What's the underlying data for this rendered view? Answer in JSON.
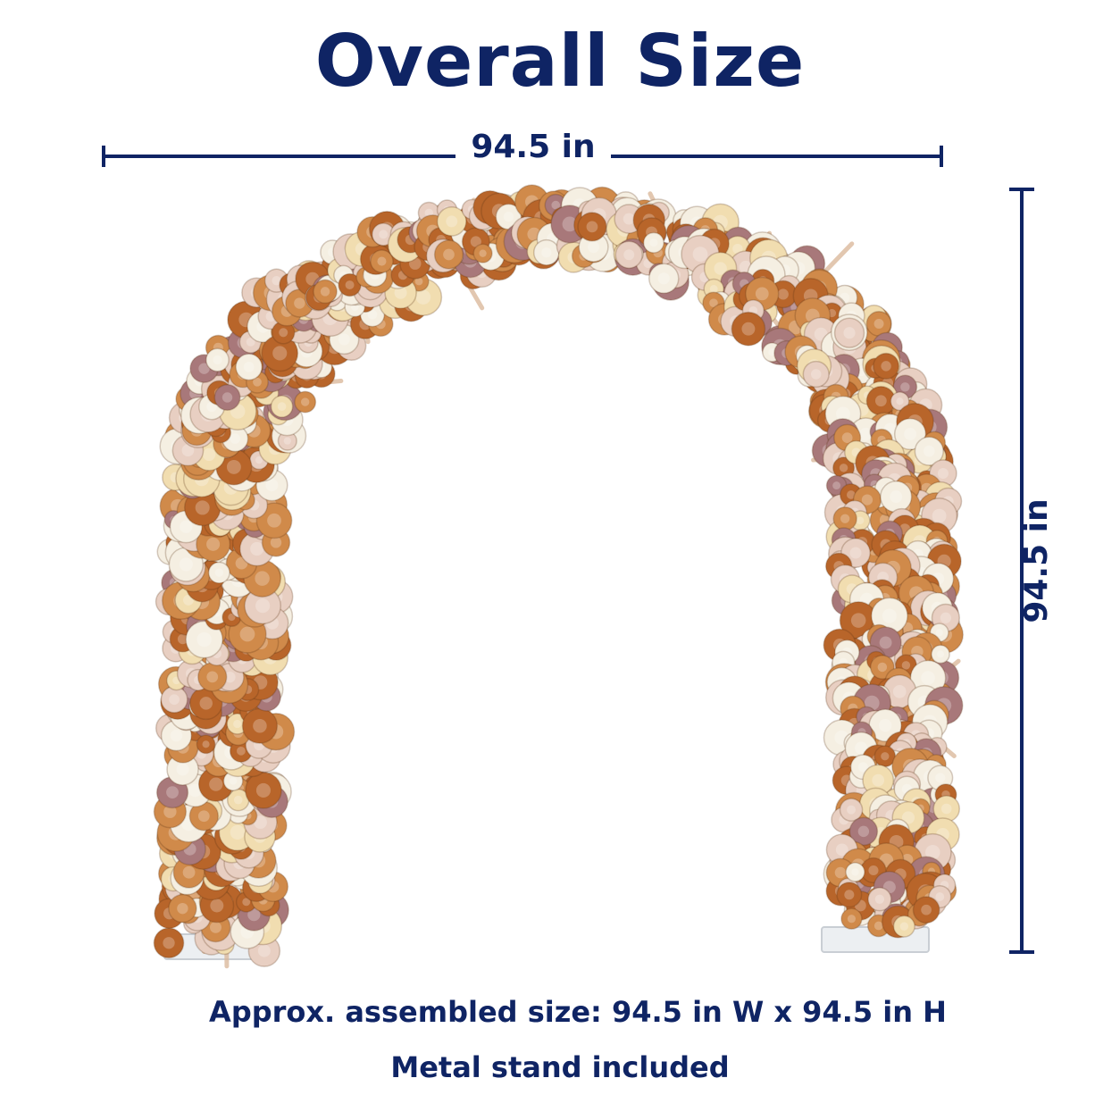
{
  "title": "Overall Size",
  "dimensions": {
    "width_label": "94.5 in",
    "height_label": "94.5 in"
  },
  "product": {
    "colors": {
      "navy": "#0f2464",
      "rust": "#b8652a",
      "caramel": "#d08a4a",
      "ivory": "#f5efe2",
      "blush": "#e8cfc2",
      "cream": "#f1ddb0",
      "mauve": "#a8787a",
      "pampas": "#d9b596"
    }
  },
  "captions": {
    "assembled_size": "Approx. assembled size: 94.5 in W x 94.5 in H",
    "stand": "Metal stand included"
  }
}
